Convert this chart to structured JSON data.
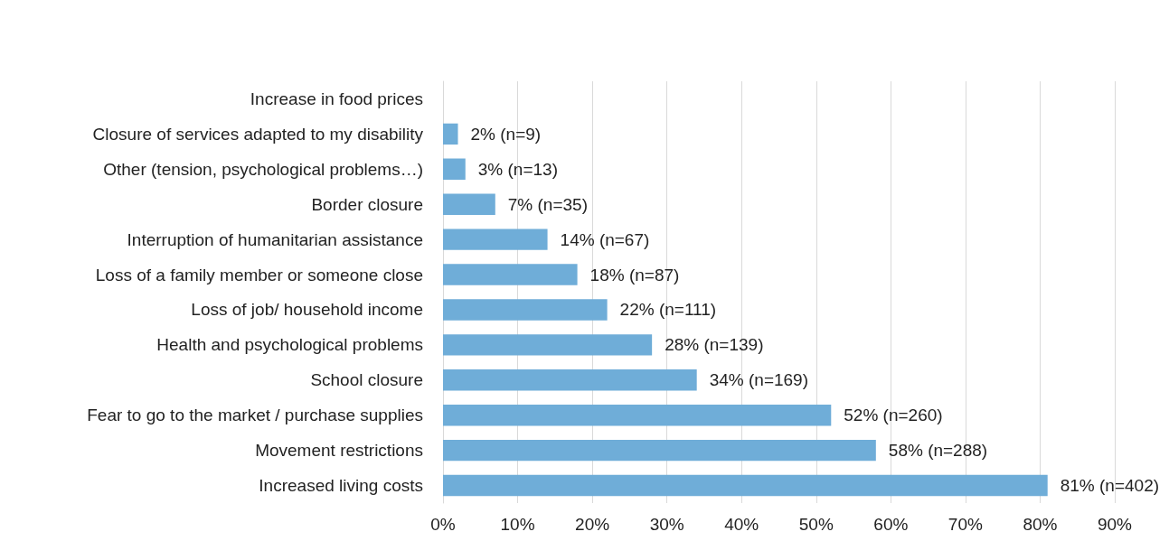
{
  "chart_data": {
    "type": "bar",
    "orientation": "horizontal",
    "categories": [
      "Increase in food prices",
      "Closure of services adapted to my disability",
      "Other (tension, psychological problems…)",
      "Border closure",
      "Interruption of humanitarian assistance",
      "Loss of a family member or someone close",
      "Loss of job/ household income",
      "Health and psychological problems",
      "School closure",
      "Fear to go to the market / purchase supplies",
      "Movement restrictions",
      "Increased living costs"
    ],
    "values": [
      null,
      2,
      3,
      7,
      14,
      18,
      22,
      28,
      34,
      52,
      58,
      81
    ],
    "value_labels": [
      null,
      "2% (n=9)",
      "3% (n=13)",
      "7% (n=35)",
      "14% (n=67)",
      "18% (n=87)",
      "22% (n=111)",
      "28% (n=139)",
      "34% (n=169)",
      "52% (n=260)",
      "58% (n=288)",
      "81% (n=402)"
    ],
    "color": "#6fadd8",
    "xlim": [
      0,
      90
    ],
    "xticks": [
      {
        "value": 0,
        "label": "0%"
      },
      {
        "value": 10,
        "label": "10%"
      },
      {
        "value": 20,
        "label": "20%"
      },
      {
        "value": 30,
        "label": "30%"
      },
      {
        "value": 40,
        "label": "40%"
      },
      {
        "value": 50,
        "label": "50%"
      },
      {
        "value": 60,
        "label": "60%"
      },
      {
        "value": 70,
        "label": "70%"
      },
      {
        "value": 80,
        "label": "80%"
      },
      {
        "value": 90,
        "label": "90%"
      }
    ],
    "grid": "x"
  }
}
